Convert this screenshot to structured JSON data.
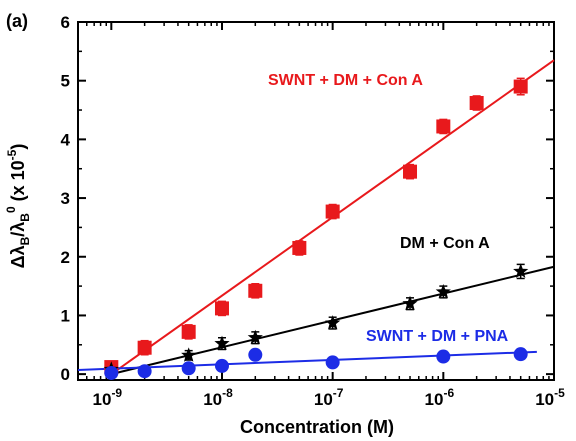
{
  "chart_data": {
    "type": "scatter",
    "panel_label": "(a)",
    "xlabel": "Concentration (M)",
    "ylabel": "Δλ_B/λ_B^0 (x 10^-5)",
    "xscale": "log",
    "xlim": [
      5e-10,
      1e-05
    ],
    "ylim": [
      -0.1,
      6
    ],
    "x_ticks": [
      {
        "value": 1e-09,
        "base": "10",
        "exp": "-9"
      },
      {
        "value": 1e-08,
        "base": "10",
        "exp": "-8"
      },
      {
        "value": 1e-07,
        "base": "10",
        "exp": "-7"
      },
      {
        "value": 1e-06,
        "base": "10",
        "exp": "-6"
      },
      {
        "value": 1e-05,
        "base": "10",
        "exp": "-5"
      }
    ],
    "y_ticks": [
      "0",
      "1",
      "2",
      "3",
      "4",
      "5",
      "6"
    ],
    "ylabel_parts": {
      "delta": "Δλ",
      "sub_b": "B",
      "slash": "/λ",
      "sub_b2": "B",
      "sup_0": "0",
      "tail": " (x 10",
      "sup_exp": "-5",
      "close": ")"
    },
    "series": [
      {
        "name": "SWNT + DM + Con A",
        "color": "#e8191c",
        "marker": "square",
        "points": [
          {
            "x": 1e-09,
            "y": 0.12,
            "err": 0.08
          },
          {
            "x": 2e-09,
            "y": 0.45,
            "err": 0.12
          },
          {
            "x": 5e-09,
            "y": 0.72,
            "err": 0.12
          },
          {
            "x": 1e-08,
            "y": 1.12,
            "err": 0.12
          },
          {
            "x": 2e-08,
            "y": 1.42,
            "err": 0.12
          },
          {
            "x": 5e-08,
            "y": 2.15,
            "err": 0.12
          },
          {
            "x": 1e-07,
            "y": 2.77,
            "err": 0.12
          },
          {
            "x": 5e-07,
            "y": 3.45,
            "err": 0.12
          },
          {
            "x": 1e-06,
            "y": 4.22,
            "err": 0.12
          },
          {
            "x": 2e-06,
            "y": 4.62,
            "err": 0.12
          },
          {
            "x": 5e-06,
            "y": 4.9,
            "err": 0.14
          }
        ],
        "fit": {
          "x": [
            1e-09,
            1e-05
          ],
          "y": [
            0.0,
            5.35
          ]
        }
      },
      {
        "name": "DM + Con A",
        "color": "#000000",
        "marker": "star",
        "points": [
          {
            "x": 1e-09,
            "y": 0.08,
            "err": 0.06
          },
          {
            "x": 5e-09,
            "y": 0.32,
            "err": 0.08
          },
          {
            "x": 1e-08,
            "y": 0.52,
            "err": 0.1
          },
          {
            "x": 2e-08,
            "y": 0.62,
            "err": 0.1
          },
          {
            "x": 1e-07,
            "y": 0.87,
            "err": 0.1
          },
          {
            "x": 5e-07,
            "y": 1.2,
            "err": 0.1
          },
          {
            "x": 1e-06,
            "y": 1.4,
            "err": 0.1
          },
          {
            "x": 5e-06,
            "y": 1.75,
            "err": 0.12
          }
        ],
        "fit": {
          "x": [
            1e-09,
            1e-05
          ],
          "y": [
            0.0,
            1.83
          ]
        }
      },
      {
        "name": "SWNT + DM + PNA",
        "color": "#1c2ce6",
        "marker": "circle",
        "points": [
          {
            "x": 1e-09,
            "y": 0.02,
            "err": 0.04
          },
          {
            "x": 2e-09,
            "y": 0.05,
            "err": 0.04
          },
          {
            "x": 5e-09,
            "y": 0.1,
            "err": 0.05
          },
          {
            "x": 1e-08,
            "y": 0.14,
            "err": 0.05
          },
          {
            "x": 2e-08,
            "y": 0.33,
            "err": 0.06
          },
          {
            "x": 1e-07,
            "y": 0.2,
            "err": 0.05
          },
          {
            "x": 1e-06,
            "y": 0.3,
            "err": 0.05
          },
          {
            "x": 5e-06,
            "y": 0.34,
            "err": 0.05
          }
        ],
        "fit": {
          "x": [
            5e-10,
            7e-06
          ],
          "y": [
            0.07,
            0.38
          ]
        }
      }
    ],
    "annotations": [
      {
        "series": 0,
        "text": "SWNT + DM + Con A"
      },
      {
        "series": 1,
        "text": "DM + Con A"
      },
      {
        "series": 2,
        "text": "SWNT + DM + PNA"
      }
    ]
  }
}
